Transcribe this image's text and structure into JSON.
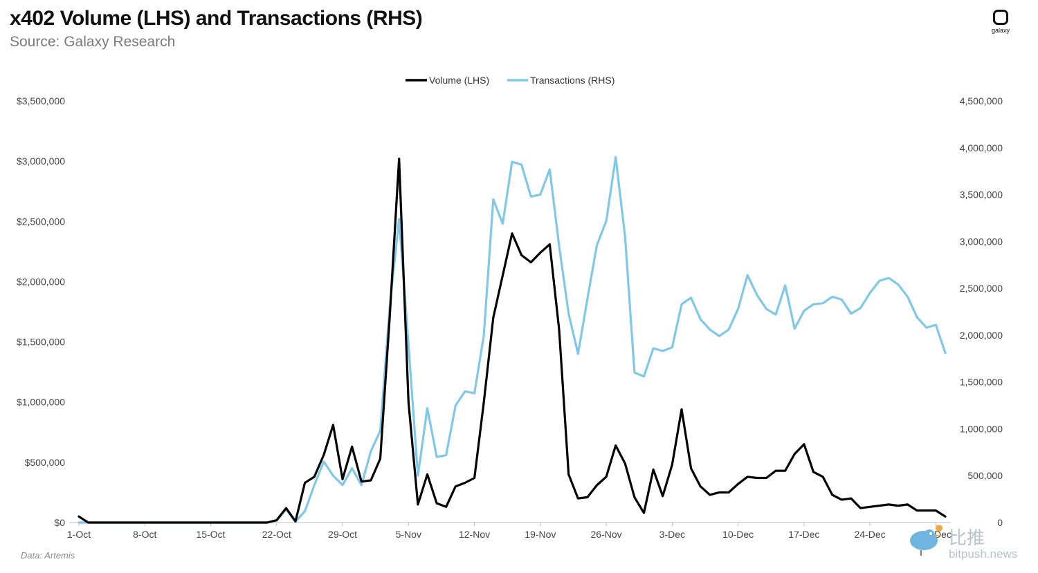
{
  "header": {
    "title": "x402 Volume (LHS) and Transactions (RHS)",
    "subtitle": "Source: Galaxy Research"
  },
  "footer": {
    "note": "Data: Artemis"
  },
  "logo": {
    "text": "galaxy"
  },
  "watermark": {
    "cn": "比推",
    "en": "bitpush.news"
  },
  "colors": {
    "volume": "#000000",
    "transactions": "#7fc8ea",
    "axis": "#bbbbbb"
  },
  "chart_data": {
    "type": "line",
    "title": "x402 Volume (LHS) and Transactions (RHS)",
    "legend_position": "top-center",
    "grid": false,
    "x_start": "2025-10-01",
    "x_end": "2025-12-31",
    "x_tick_labels": [
      "1-Oct",
      "8-Oct",
      "15-Oct",
      "22-Oct",
      "29-Oct",
      "5-Nov",
      "12-Nov",
      "19-Nov",
      "26-Nov",
      "3-Dec",
      "10-Dec",
      "17-Dec",
      "24-Dec",
      "31-Dec"
    ],
    "y_left": {
      "label": "",
      "ticks": [
        "$0",
        "$500,000",
        "$1,000,000",
        "$1,500,000",
        "$2,000,000",
        "$2,500,000",
        "$3,000,000",
        "$3,500,000"
      ],
      "min": 0,
      "max": 3500000
    },
    "y_right": {
      "label": "",
      "ticks": [
        "0",
        "500,000",
        "1,000,000",
        "1,500,000",
        "2,000,000",
        "2,500,000",
        "3,000,000",
        "3,500,000",
        "4,000,000",
        "4,500,000"
      ],
      "min": 0,
      "max": 4500000
    },
    "series": [
      {
        "name": "Volume (LHS)",
        "axis": "left",
        "values": [
          50000,
          0,
          0,
          0,
          0,
          0,
          0,
          0,
          0,
          0,
          0,
          0,
          0,
          0,
          0,
          0,
          0,
          0,
          0,
          0,
          0,
          20000,
          120000,
          10000,
          330000,
          380000,
          560000,
          810000,
          360000,
          630000,
          340000,
          350000,
          530000,
          1700000,
          3020000,
          1000000,
          150000,
          400000,
          160000,
          130000,
          300000,
          330000,
          370000,
          1000000,
          1700000,
          2050000,
          2400000,
          2220000,
          2160000,
          2240000,
          2310000,
          1600000,
          400000,
          200000,
          210000,
          310000,
          380000,
          640000,
          490000,
          210000,
          80000,
          440000,
          220000,
          480000,
          940000,
          450000,
          300000,
          230000,
          250000,
          250000,
          320000,
          380000,
          370000,
          370000,
          430000,
          430000,
          570000,
          650000,
          420000,
          380000,
          230000,
          190000,
          200000,
          120000,
          130000,
          140000,
          150000,
          140000,
          150000,
          100000,
          100000,
          100000,
          50000
        ]
      },
      {
        "name": "Transactions (RHS)",
        "axis": "right",
        "values": [
          0,
          0,
          0,
          0,
          0,
          0,
          0,
          0,
          0,
          0,
          0,
          0,
          0,
          0,
          0,
          0,
          0,
          0,
          0,
          0,
          0,
          20000,
          140000,
          10000,
          120000,
          400000,
          650000,
          500000,
          400000,
          580000,
          400000,
          760000,
          980000,
          2300000,
          3240000,
          1900000,
          500000,
          1220000,
          700000,
          720000,
          1250000,
          1400000,
          1380000,
          2000000,
          3450000,
          3190000,
          3850000,
          3820000,
          3480000,
          3500000,
          3770000,
          2950000,
          2230000,
          1800000,
          2390000,
          2960000,
          3220000,
          3900000,
          3050000,
          1600000,
          1560000,
          1860000,
          1830000,
          1870000,
          2330000,
          2400000,
          2170000,
          2060000,
          1990000,
          2060000,
          2280000,
          2640000,
          2430000,
          2280000,
          2220000,
          2530000,
          2070000,
          2260000,
          2330000,
          2340000,
          2410000,
          2380000,
          2230000,
          2290000,
          2450000,
          2580000,
          2610000,
          2540000,
          2410000,
          2190000,
          2080000,
          2110000,
          1810000
        ]
      }
    ]
  }
}
